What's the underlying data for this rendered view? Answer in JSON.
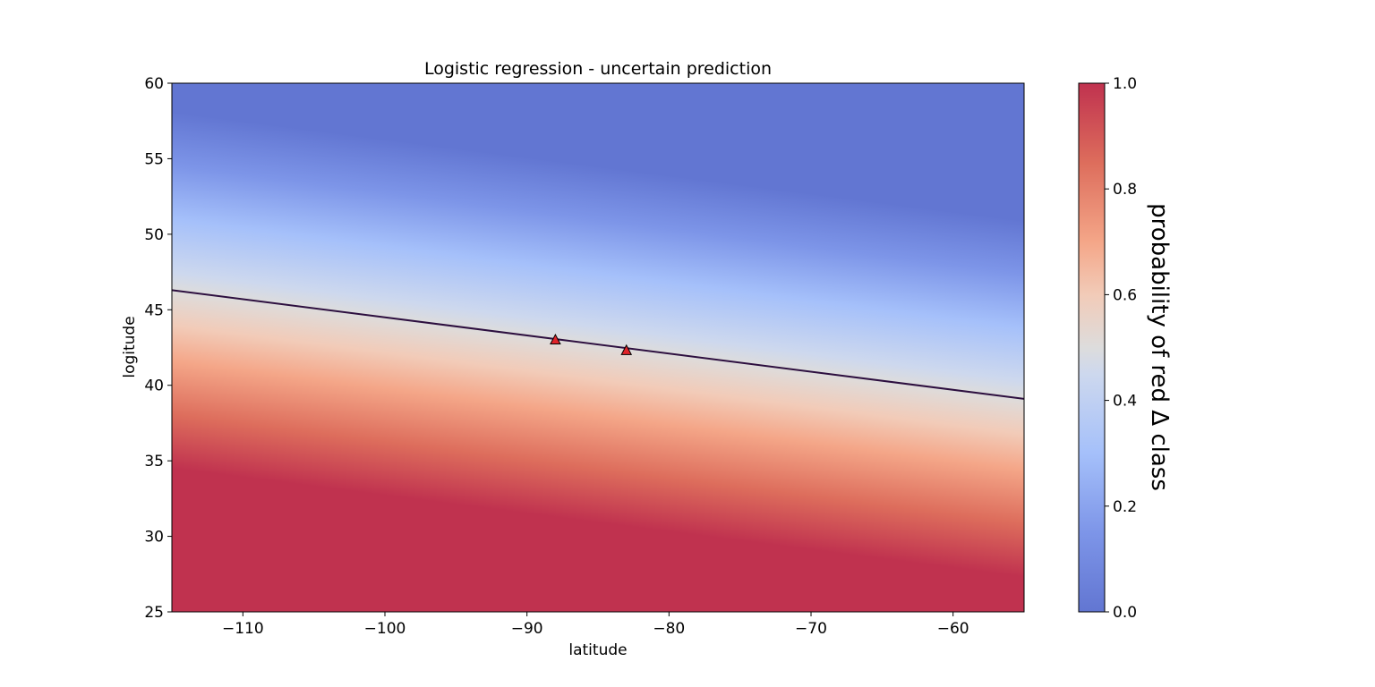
{
  "chart_data": {
    "type": "heatmap",
    "title": "Logistic regression - uncertain prediction",
    "xlabel": "latitude",
    "ylabel": "logitude",
    "xlim": [
      -115,
      -55
    ],
    "ylim": [
      25,
      60
    ],
    "xticks": [
      -110,
      -100,
      -90,
      -80,
      -70,
      -60
    ],
    "xtick_labels": [
      "−110",
      "−100",
      "−90",
      "−80",
      "−70",
      "−60"
    ],
    "yticks": [
      25,
      30,
      35,
      40,
      45,
      50,
      55,
      60
    ],
    "ytick_labels": [
      "25",
      "30",
      "35",
      "40",
      "45",
      "50",
      "55",
      "60"
    ],
    "grid": false,
    "colormap": "coolwarm",
    "colors": {
      "low": "#6276d2",
      "mid": "#dddcdc",
      "high": "#c0324f",
      "boundary_line": "#2d0f3f",
      "marker_fill": "#e0242b",
      "marker_edge": "#000000"
    },
    "probability_field": {
      "boundary": {
        "start": [
          -115,
          46.3
        ],
        "end": [
          -55,
          39.1
        ]
      },
      "transition_width": 4.5
    },
    "decision_boundary": {
      "x": [
        -115,
        -55
      ],
      "y": [
        46.3,
        39.1
      ]
    },
    "series": [
      {
        "marker": "triangle",
        "x": [
          -88,
          -83
        ],
        "y": [
          43.0,
          42.3
        ]
      }
    ],
    "colorbar": {
      "label": "probability of red Δ class",
      "range": [
        0,
        1
      ],
      "ticks": [
        0.0,
        0.2,
        0.4,
        0.6,
        0.8,
        1.0
      ],
      "tick_labels": [
        "0.0",
        "0.2",
        "0.4",
        "0.6",
        "0.8",
        "1.0"
      ]
    }
  }
}
